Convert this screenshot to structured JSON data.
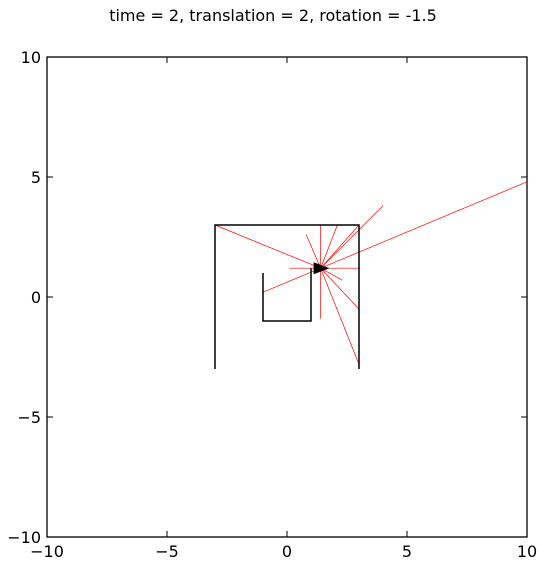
{
  "chart_data": {
    "type": "line",
    "title": "time = 2, translation = 2, rotation = -1.5",
    "xlabel": "",
    "ylabel": "",
    "xlim": [
      -10,
      10
    ],
    "ylim": [
      -10,
      10
    ],
    "x_ticks": [
      -10,
      -5,
      0,
      5,
      10
    ],
    "y_ticks": [
      -10,
      -5,
      0,
      5,
      10
    ],
    "x_tick_labels": [
      "−10",
      "−5",
      "0",
      "5",
      "10"
    ],
    "y_tick_labels": [
      "−10",
      "−5",
      "0",
      "5",
      "10"
    ],
    "grid": false,
    "legend": "none",
    "colors": {
      "walls": "#000000",
      "rays": "#ff0000",
      "robot": "#000000",
      "axes": "#000000"
    },
    "walls": [
      {
        "x": [
          -3,
          -3,
          3,
          3
        ],
        "y": [
          -3,
          3,
          3,
          -3
        ]
      },
      {
        "x": [
          -1,
          -1,
          1,
          1
        ],
        "y": [
          1,
          -1,
          -1,
          1.2
        ]
      }
    ],
    "robot": {
      "position": [
        1.4,
        1.2
      ],
      "heading_rad": 0
    },
    "rays": [
      [
        10,
        4.8
      ],
      [
        3,
        3
      ],
      [
        -3,
        3
      ],
      [
        -1,
        0.2
      ],
      [
        3,
        -0.5
      ],
      [
        3,
        -2.8
      ],
      [
        4,
        3.8
      ],
      [
        2.1,
        3
      ],
      [
        1.4,
        3
      ],
      [
        0.8,
        2.6
      ],
      [
        0.1,
        1.2
      ],
      [
        3,
        1.2
      ],
      [
        2.3,
        0.7
      ],
      [
        1.4,
        -0.9
      ]
    ]
  }
}
